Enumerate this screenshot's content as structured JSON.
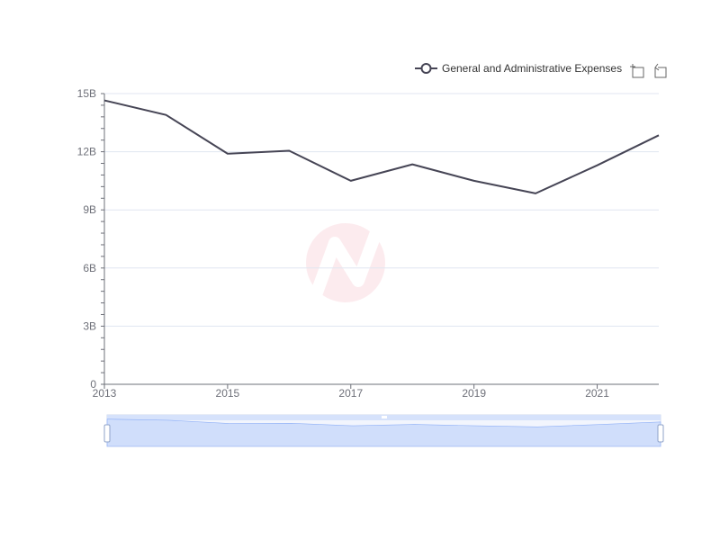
{
  "chart_data": {
    "type": "line",
    "x": [
      2013,
      2014,
      2015,
      2016,
      2017,
      2018,
      2019,
      2020,
      2021,
      2022
    ],
    "x_tick_labels": [
      "2013",
      "2015",
      "2017",
      "2019",
      "2021"
    ],
    "y_tick_labels": [
      "0",
      "3B",
      "6B",
      "9B",
      "12B",
      "15B"
    ],
    "y_ticks": [
      0,
      3000000000,
      6000000000,
      9000000000,
      12000000000,
      15000000000
    ],
    "ylim": [
      0,
      15000000000
    ],
    "xlim": [
      2013,
      2022
    ],
    "series": [
      {
        "name": "General and Administrative Expenses",
        "values": [
          14650000000,
          13900000000,
          11900000000,
          12050000000,
          10500000000,
          11350000000,
          10500000000,
          9850000000,
          11300000000,
          12850000000
        ]
      }
    ],
    "grid": true,
    "legend_position": "top-right",
    "colors": {
      "line": "#464555",
      "grid": "#e0e6f1",
      "axis": "#6e7079",
      "zoom_fill": "#d2dfff",
      "zoom_stroke": "#8fb0f7"
    },
    "toolbox": {
      "zoom_icon": "data-zoom-icon",
      "reset_icon": "zoom-reset-icon"
    },
    "watermark_icon": "brand-logo-watermark"
  }
}
